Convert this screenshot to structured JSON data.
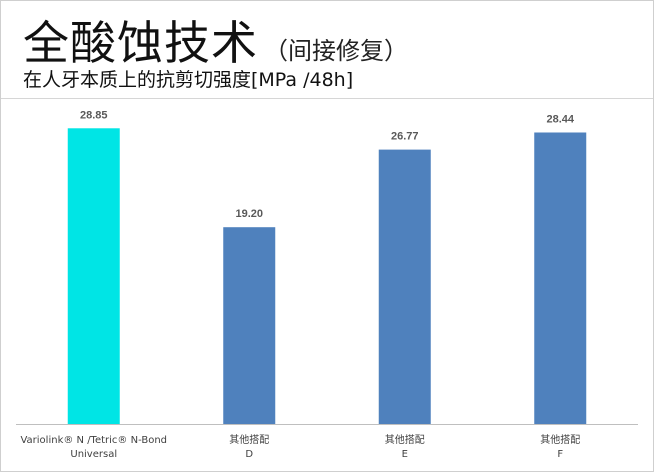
{
  "header": {
    "title": "全酸蚀技术",
    "title_paren": "（间接修复）",
    "subtitle": "在人牙本质上的抗剪切强度[MPa /48h]"
  },
  "colors": {
    "highlight_bar": "#00e5e5",
    "bar": "#4f81bd",
    "value_label": "#595959",
    "category_label": "#404040",
    "axis": "#bfbfbf"
  },
  "chart_data": {
    "type": "bar",
    "title": "",
    "xlabel": "",
    "ylabel": "",
    "categories": [
      [
        "Variolink® N /Tetric® N-Bond",
        "Universal"
      ],
      [
        "其他搭配",
        "D"
      ],
      [
        "其他搭配",
        "E"
      ],
      [
        "其他搭配",
        "F"
      ]
    ],
    "values": [
      28.85,
      19.2,
      26.77,
      28.44
    ],
    "value_labels": [
      "28.85",
      "19.20",
      "26.77",
      "28.44"
    ],
    "highlight_index": 0,
    "ylim": [
      0,
      32
    ],
    "grid": false,
    "legend": "none"
  }
}
